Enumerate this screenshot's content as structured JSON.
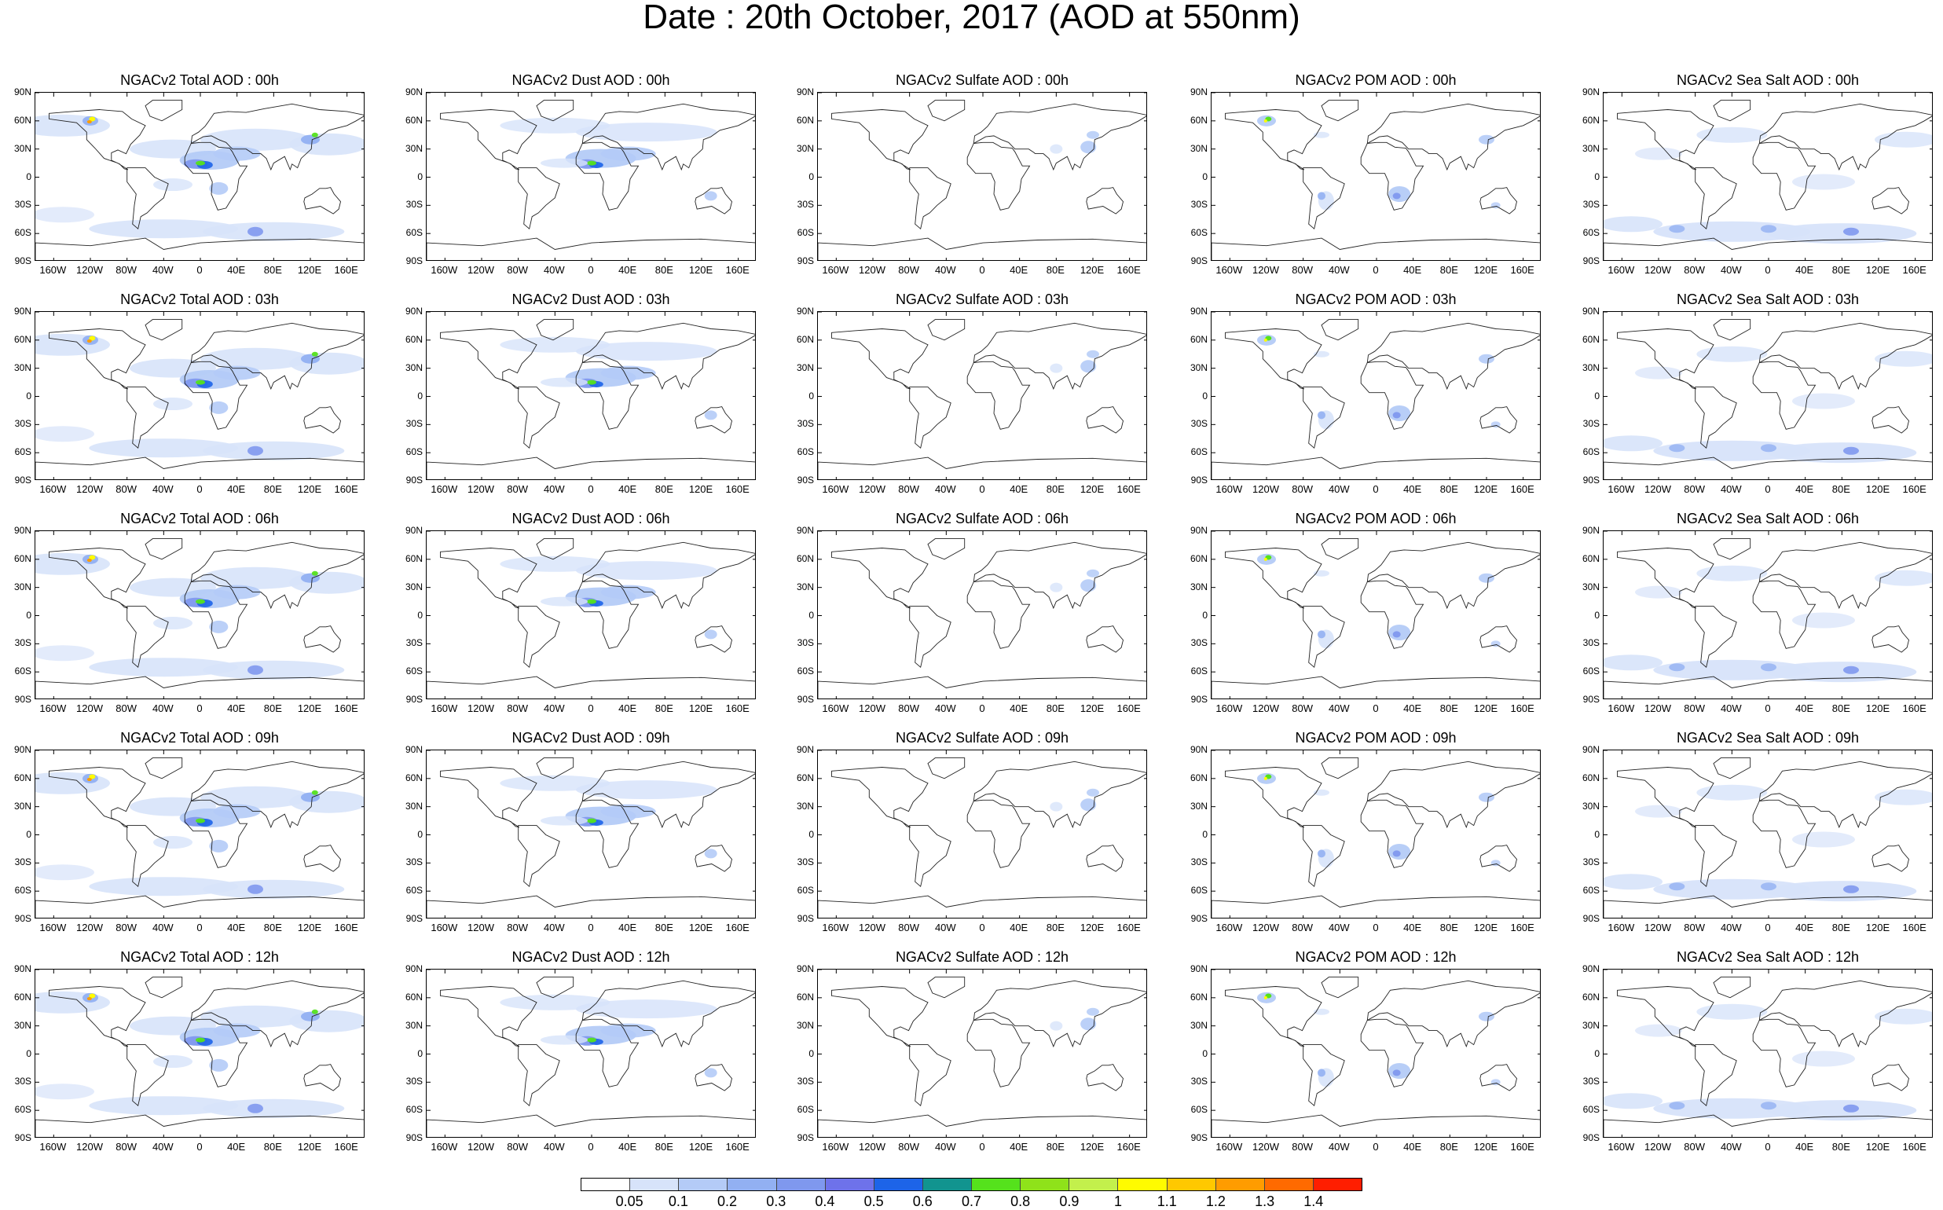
{
  "title": "Date : 20th October, 2017 (AOD at 550nm)",
  "panels": [
    [
      "NGACv2 Total AOD : 00h",
      "NGACv2 Dust AOD : 00h",
      "NGACv2 Sulfate AOD : 00h",
      "NGACv2 POM AOD : 00h",
      "NGACv2 Sea Salt AOD : 00h"
    ],
    [
      "NGACv2 Total AOD : 03h",
      "NGACv2 Dust AOD : 03h",
      "NGACv2 Sulfate AOD : 03h",
      "NGACv2 POM AOD : 03h",
      "NGACv2 Sea Salt AOD : 03h"
    ],
    [
      "NGACv2 Total AOD : 06h",
      "NGACv2 Dust AOD : 06h",
      "NGACv2 Sulfate AOD : 06h",
      "NGACv2 POM AOD : 06h",
      "NGACv2 Sea Salt AOD : 06h"
    ],
    [
      "NGACv2 Total AOD : 09h",
      "NGACv2 Dust AOD : 09h",
      "NGACv2 Sulfate AOD : 09h",
      "NGACv2 POM AOD : 09h",
      "NGACv2 Sea Salt AOD : 09h"
    ],
    [
      "NGACv2 Total AOD :  12h",
      "NGACv2 Dust AOD : 12h",
      "NGACv2 Sulfate AOD : 12h",
      "NGACv2 POM  AOD : 12h",
      "NGACv2 Sea Salt AOD : 12h"
    ]
  ],
  "lat_ticks": [
    "90N",
    "60N",
    "30N",
    "0",
    "30S",
    "60S",
    "90S"
  ],
  "lon_ticks": [
    "160W",
    "120W",
    "80W",
    "40W",
    "0",
    "40E",
    "80E",
    "120E",
    "160E"
  ],
  "lon_tick_values": [
    -160,
    -120,
    -80,
    -40,
    0,
    40,
    80,
    120,
    160
  ],
  "lat_tick_values": [
    90,
    60,
    30,
    0,
    -30,
    -60,
    -90
  ],
  "colorbar": {
    "labels": [
      "0.05",
      "0.1",
      "0.2",
      "0.3",
      "0.4",
      "0.5",
      "0.6",
      "0.7",
      "0.8",
      "0.9",
      "1",
      "1.1",
      "1.2",
      "1.3",
      "1.4"
    ],
    "colors": [
      "#ffffff",
      "#d7e3fa",
      "#b4cbf7",
      "#92b0f2",
      "#7f98ee",
      "#6e72ea",
      "#1d64e8",
      "#11948f",
      "#55e21c",
      "#8fe21a",
      "#c3f04c",
      "#fffb00",
      "#ffc800",
      "#ff9c00",
      "#ff6a00",
      "#ff1e00"
    ]
  },
  "aerosol_types": [
    "total",
    "dust",
    "sulfate",
    "pom",
    "seasalt"
  ]
}
